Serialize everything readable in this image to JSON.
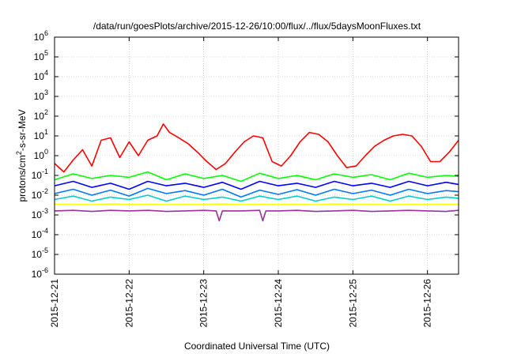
{
  "chart_data": {
    "type": "line",
    "title": "/data/run/goesPlots/archive/2015-12-26/10:00/flux/../flux/5daysMoonFluxes.txt",
    "xlabel": "Coordinated Universal Time (UTC)",
    "ylabel": {
      "base": "protons/cm",
      "sup": "2",
      "rest": "-s-sr-MeV"
    },
    "y_scale": "log",
    "ylim": [
      1e-06,
      1000000.0
    ],
    "xlim": [
      "2015-12-21 00:00",
      "2015-12-26 10:00"
    ],
    "grid": true,
    "legend": "none",
    "y_ticks": [
      {
        "value": -6,
        "base": "10",
        "exp": "-6"
      },
      {
        "value": -5,
        "base": "10",
        "exp": "-5"
      },
      {
        "value": -4,
        "base": "10",
        "exp": "-4"
      },
      {
        "value": -3,
        "base": "10",
        "exp": "-3"
      },
      {
        "value": -2,
        "base": "10",
        "exp": "-2"
      },
      {
        "value": -1,
        "base": "10",
        "exp": "-1"
      },
      {
        "value": 0,
        "base": "10",
        "exp": "0"
      },
      {
        "value": 1,
        "base": "10",
        "exp": "1"
      },
      {
        "value": 2,
        "base": "10",
        "exp": "2"
      },
      {
        "value": 3,
        "base": "10",
        "exp": "3"
      },
      {
        "value": 4,
        "base": "10",
        "exp": "4"
      },
      {
        "value": 5,
        "base": "10",
        "exp": "5"
      },
      {
        "value": 6,
        "base": "10",
        "exp": "6"
      }
    ],
    "x_ticks": [
      "2015-12-21",
      "2015-12-22",
      "2015-12-23",
      "2015-12-24",
      "2015-12-25",
      "2015-12-26"
    ],
    "series": [
      {
        "color": "#ff0000",
        "x": [
          "2015-12-21 00:00",
          "2015-12-21 03:00",
          "2015-12-21 06:00",
          "2015-12-21 09:00",
          "2015-12-21 12:00",
          "2015-12-21 15:00",
          "2015-12-21 18:00",
          "2015-12-21 21:00",
          "2015-12-22 00:00",
          "2015-12-22 03:00",
          "2015-12-22 06:00",
          "2015-12-22 09:00",
          "2015-12-22 11:00",
          "2015-12-22 13:00",
          "2015-12-22 16:00",
          "2015-12-22 19:00",
          "2015-12-22 22:00",
          "2015-12-23 01:00",
          "2015-12-23 04:00",
          "2015-12-23 07:00",
          "2015-12-23 10:00",
          "2015-12-23 13:00",
          "2015-12-23 16:00",
          "2015-12-23 19:00",
          "2015-12-23 22:00",
          "2015-12-24 01:00",
          "2015-12-24 04:00",
          "2015-12-24 07:00",
          "2015-12-24 10:00",
          "2015-12-24 13:00",
          "2015-12-24 16:00",
          "2015-12-24 19:00",
          "2015-12-24 22:00",
          "2015-12-25 01:00",
          "2015-12-25 04:00",
          "2015-12-25 07:00",
          "2015-12-25 10:00",
          "2015-12-25 13:00",
          "2015-12-25 16:00",
          "2015-12-25 19:00",
          "2015-12-25 22:00",
          "2015-12-26 01:00",
          "2015-12-26 04:00",
          "2015-12-26 07:00",
          "2015-12-26 10:00"
        ],
        "y": [
          0.4,
          0.15,
          0.6,
          2,
          0.3,
          6,
          8,
          0.8,
          5,
          1,
          6,
          10,
          40,
          15,
          8,
          4,
          1.5,
          0.5,
          0.2,
          0.4,
          1.5,
          5,
          10,
          8,
          0.5,
          0.3,
          1,
          5,
          15,
          12,
          5,
          1,
          0.25,
          0.3,
          1,
          3,
          6,
          10,
          12,
          10,
          3,
          0.5,
          0.5,
          1.5,
          6
        ]
      },
      {
        "color": "#00ff00",
        "x": [
          "2015-12-21 00:00",
          "2015-12-21 06:00",
          "2015-12-21 12:00",
          "2015-12-21 18:00",
          "2015-12-22 00:00",
          "2015-12-22 06:00",
          "2015-12-22 12:00",
          "2015-12-22 18:00",
          "2015-12-23 00:00",
          "2015-12-23 06:00",
          "2015-12-23 12:00",
          "2015-12-23 18:00",
          "2015-12-24 00:00",
          "2015-12-24 06:00",
          "2015-12-24 12:00",
          "2015-12-24 18:00",
          "2015-12-25 00:00",
          "2015-12-25 06:00",
          "2015-12-25 12:00",
          "2015-12-25 18:00",
          "2015-12-26 00:00",
          "2015-12-26 06:00",
          "2015-12-26 10:00"
        ],
        "y": [
          0.06,
          0.12,
          0.07,
          0.1,
          0.08,
          0.15,
          0.06,
          0.12,
          0.07,
          0.1,
          0.05,
          0.13,
          0.07,
          0.1,
          0.06,
          0.12,
          0.08,
          0.11,
          0.06,
          0.13,
          0.08,
          0.1,
          0.09
        ]
      },
      {
        "color": "#0000ff",
        "x": [
          "2015-12-21 00:00",
          "2015-12-21 06:00",
          "2015-12-21 12:00",
          "2015-12-21 18:00",
          "2015-12-22 00:00",
          "2015-12-22 06:00",
          "2015-12-22 12:00",
          "2015-12-22 18:00",
          "2015-12-23 00:00",
          "2015-12-23 06:00",
          "2015-12-23 12:00",
          "2015-12-23 18:00",
          "2015-12-24 00:00",
          "2015-12-24 06:00",
          "2015-12-24 12:00",
          "2015-12-24 18:00",
          "2015-12-25 00:00",
          "2015-12-25 06:00",
          "2015-12-25 12:00",
          "2015-12-25 18:00",
          "2015-12-26 00:00",
          "2015-12-26 06:00",
          "2015-12-26 10:00"
        ],
        "y": [
          0.03,
          0.05,
          0.025,
          0.04,
          0.02,
          0.05,
          0.03,
          0.04,
          0.025,
          0.045,
          0.02,
          0.05,
          0.03,
          0.04,
          0.025,
          0.05,
          0.03,
          0.04,
          0.025,
          0.05,
          0.03,
          0.045,
          0.035
        ]
      },
      {
        "color": "#0077ff",
        "x": [
          "2015-12-21 00:00",
          "2015-12-21 06:00",
          "2015-12-21 12:00",
          "2015-12-21 18:00",
          "2015-12-22 00:00",
          "2015-12-22 06:00",
          "2015-12-22 12:00",
          "2015-12-22 18:00",
          "2015-12-23 00:00",
          "2015-12-23 06:00",
          "2015-12-23 12:00",
          "2015-12-23 18:00",
          "2015-12-24 00:00",
          "2015-12-24 06:00",
          "2015-12-24 12:00",
          "2015-12-24 18:00",
          "2015-12-25 00:00",
          "2015-12-25 06:00",
          "2015-12-25 12:00",
          "2015-12-25 18:00",
          "2015-12-26 00:00",
          "2015-12-26 06:00",
          "2015-12-26 10:00"
        ],
        "y": [
          0.012,
          0.02,
          0.01,
          0.018,
          0.009,
          0.022,
          0.012,
          0.017,
          0.01,
          0.02,
          0.008,
          0.018,
          0.011,
          0.019,
          0.01,
          0.02,
          0.012,
          0.018,
          0.01,
          0.02,
          0.012,
          0.017,
          0.015
        ]
      },
      {
        "color": "#00cccc",
        "x": [
          "2015-12-21 00:00",
          "2015-12-21 06:00",
          "2015-12-21 12:00",
          "2015-12-21 18:00",
          "2015-12-22 00:00",
          "2015-12-22 06:00",
          "2015-12-22 12:00",
          "2015-12-22 18:00",
          "2015-12-23 00:00",
          "2015-12-23 06:00",
          "2015-12-23 12:00",
          "2015-12-23 18:00",
          "2015-12-24 00:00",
          "2015-12-24 06:00",
          "2015-12-24 12:00",
          "2015-12-24 18:00",
          "2015-12-25 00:00",
          "2015-12-25 06:00",
          "2015-12-25 12:00",
          "2015-12-25 18:00",
          "2015-12-26 00:00",
          "2015-12-26 06:00",
          "2015-12-26 10:00"
        ],
        "y": [
          0.006,
          0.009,
          0.005,
          0.008,
          0.006,
          0.01,
          0.005,
          0.009,
          0.006,
          0.008,
          0.005,
          0.009,
          0.006,
          0.009,
          0.005,
          0.008,
          0.006,
          0.009,
          0.005,
          0.009,
          0.006,
          0.008,
          0.007
        ]
      },
      {
        "color": "#ffff00",
        "x": [
          "2015-12-21 00:00",
          "2015-12-21 06:00",
          "2015-12-21 12:00",
          "2015-12-21 18:00",
          "2015-12-22 00:00",
          "2015-12-22 06:00",
          "2015-12-22 12:00",
          "2015-12-22 18:00",
          "2015-12-23 00:00",
          "2015-12-23 06:00",
          "2015-12-23 12:00",
          "2015-12-23 18:00",
          "2015-12-24 00:00",
          "2015-12-24 06:00",
          "2015-12-24 12:00",
          "2015-12-24 18:00",
          "2015-12-25 00:00",
          "2015-12-25 06:00",
          "2015-12-25 12:00",
          "2015-12-25 18:00",
          "2015-12-26 00:00",
          "2015-12-26 06:00",
          "2015-12-26 10:00"
        ],
        "y": [
          0.0035,
          0.0035,
          0.0033,
          0.0036,
          0.0034,
          0.0035,
          0.0033,
          0.0035,
          0.0034,
          0.0036,
          0.0033,
          0.0035,
          0.0034,
          0.0035,
          0.0033,
          0.0036,
          0.0034,
          0.0035,
          0.0033,
          0.0035,
          0.0034,
          0.0035,
          0.0034
        ]
      },
      {
        "color": "#993399",
        "x": [
          "2015-12-21 00:00",
          "2015-12-21 06:00",
          "2015-12-21 12:00",
          "2015-12-21 18:00",
          "2015-12-22 00:00",
          "2015-12-22 06:00",
          "2015-12-22 12:00",
          "2015-12-22 18:00",
          "2015-12-23 00:00",
          "2015-12-23 04:00",
          "2015-12-23 05:00",
          "2015-12-23 06:00",
          "2015-12-23 12:00",
          "2015-12-23 18:00",
          "2015-12-23 19:00",
          "2015-12-23 20:00",
          "2015-12-24 00:00",
          "2015-12-24 06:00",
          "2015-12-24 12:00",
          "2015-12-24 18:00",
          "2015-12-25 00:00",
          "2015-12-25 06:00",
          "2015-12-25 12:00",
          "2015-12-25 18:00",
          "2015-12-26 00:00",
          "2015-12-26 06:00",
          "2015-12-26 10:00"
        ],
        "y": [
          0.0016,
          0.0017,
          0.0015,
          0.0017,
          0.0016,
          0.0017,
          0.0015,
          0.0016,
          0.0017,
          0.0016,
          0.0005,
          0.0016,
          0.0016,
          0.0017,
          0.0005,
          0.0016,
          0.0016,
          0.0017,
          0.0015,
          0.0016,
          0.0017,
          0.0015,
          0.0016,
          0.0017,
          0.0016,
          0.0015,
          0.0017
        ]
      }
    ]
  }
}
